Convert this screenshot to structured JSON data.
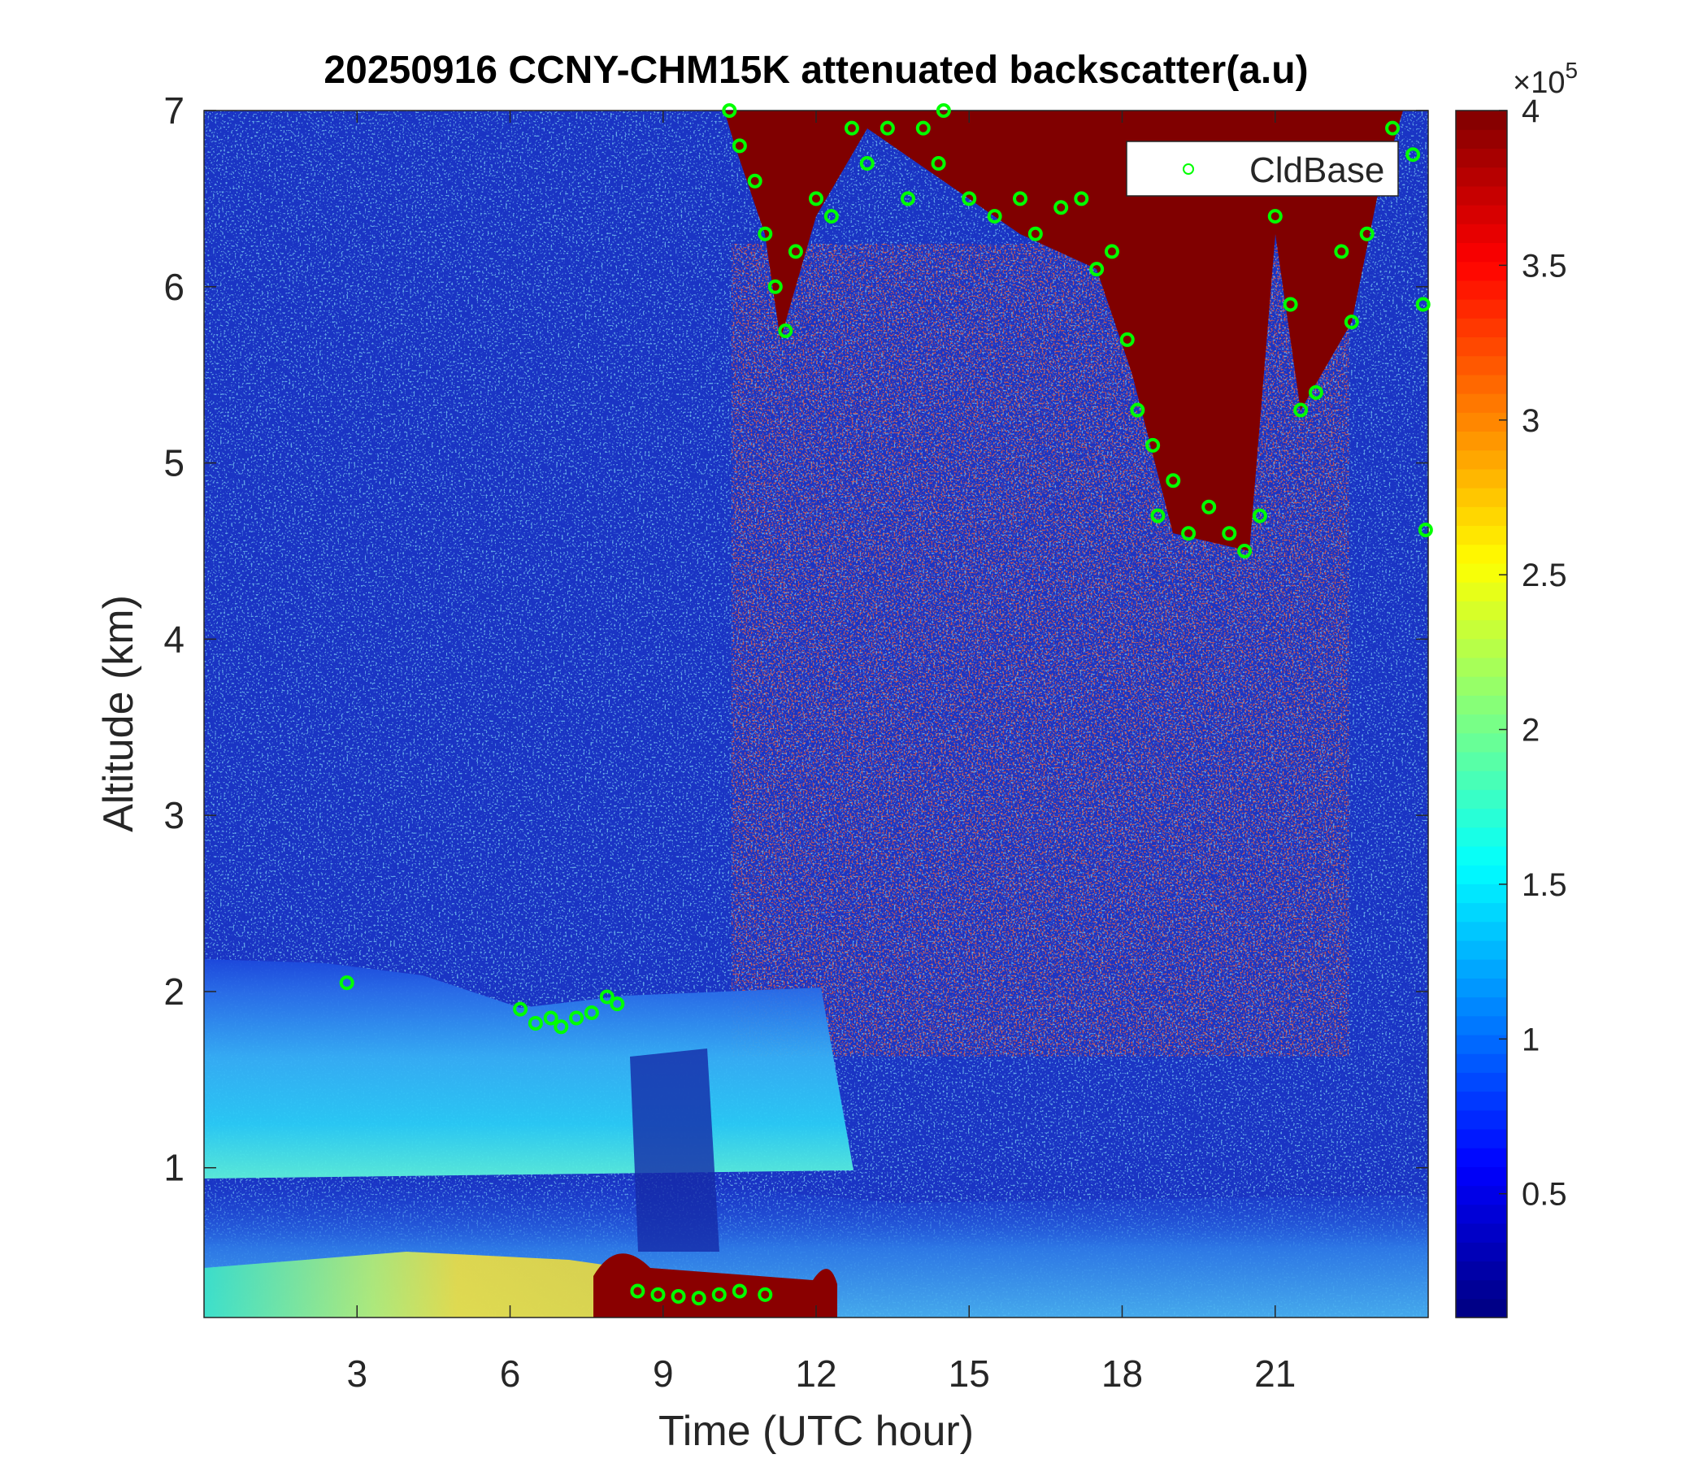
{
  "chart_data": {
    "type": "scatter",
    "title": "20250916 CCNY-CHM15K attenuated backscatter(a.u)",
    "x_label": "Time (UTC hour)",
    "y_label": "Altitude (km)",
    "xlim": [
      0,
      24
    ],
    "xticks": [
      3,
      6,
      9,
      12,
      15,
      18,
      21
    ],
    "ylim": [
      0.15,
      7
    ],
    "yticks": [
      1,
      2,
      3,
      4,
      5,
      6,
      7
    ],
    "legend": "northeast",
    "series": [
      {
        "name": "CldBase",
        "color": "#00ff00",
        "x": [
          2.8,
          6.2,
          6.5,
          6.8,
          7.0,
          7.3,
          7.6,
          7.9,
          8.1,
          8.5,
          8.9,
          9.3,
          9.7,
          10.1,
          10.5,
          11.0,
          10.3,
          10.5,
          10.8,
          11.0,
          11.2,
          11.4,
          11.6,
          12.0,
          12.3,
          12.7,
          13.0,
          13.4,
          13.8,
          14.1,
          14.4,
          14.5,
          15.0,
          15.5,
          16.0,
          16.3,
          16.8,
          17.2,
          17.5,
          17.8,
          18.1,
          18.3,
          18.6,
          18.7,
          19.0,
          19.3,
          19.7,
          20.1,
          20.4,
          20.7,
          21.0,
          21.3,
          21.5,
          21.8,
          22.3,
          22.5,
          22.8,
          23.3,
          23.7,
          23.9,
          23.95
        ],
        "values": [
          2.05,
          1.9,
          1.82,
          1.85,
          1.8,
          1.85,
          1.88,
          1.97,
          1.93,
          0.3,
          0.28,
          0.27,
          0.26,
          0.28,
          0.3,
          0.28,
          7.0,
          6.8,
          6.6,
          6.3,
          6.0,
          5.75,
          6.2,
          6.5,
          6.4,
          6.9,
          6.7,
          6.9,
          6.5,
          6.9,
          6.7,
          7.0,
          6.5,
          6.4,
          6.5,
          6.3,
          6.45,
          6.5,
          6.1,
          6.2,
          5.7,
          5.3,
          5.1,
          4.7,
          4.9,
          4.6,
          4.75,
          4.6,
          4.5,
          4.7,
          6.4,
          5.9,
          5.3,
          5.4,
          6.2,
          5.8,
          6.3,
          6.9,
          6.75,
          5.9,
          4.62
        ]
      }
    ],
    "colorbar": {
      "colormap": "jet",
      "clim": [
        0.1,
        4
      ],
      "ticks": [
        0.5,
        1,
        1.5,
        2,
        2.5,
        3,
        3.5,
        4
      ],
      "multiplier": "×10",
      "exponent": "5"
    }
  }
}
